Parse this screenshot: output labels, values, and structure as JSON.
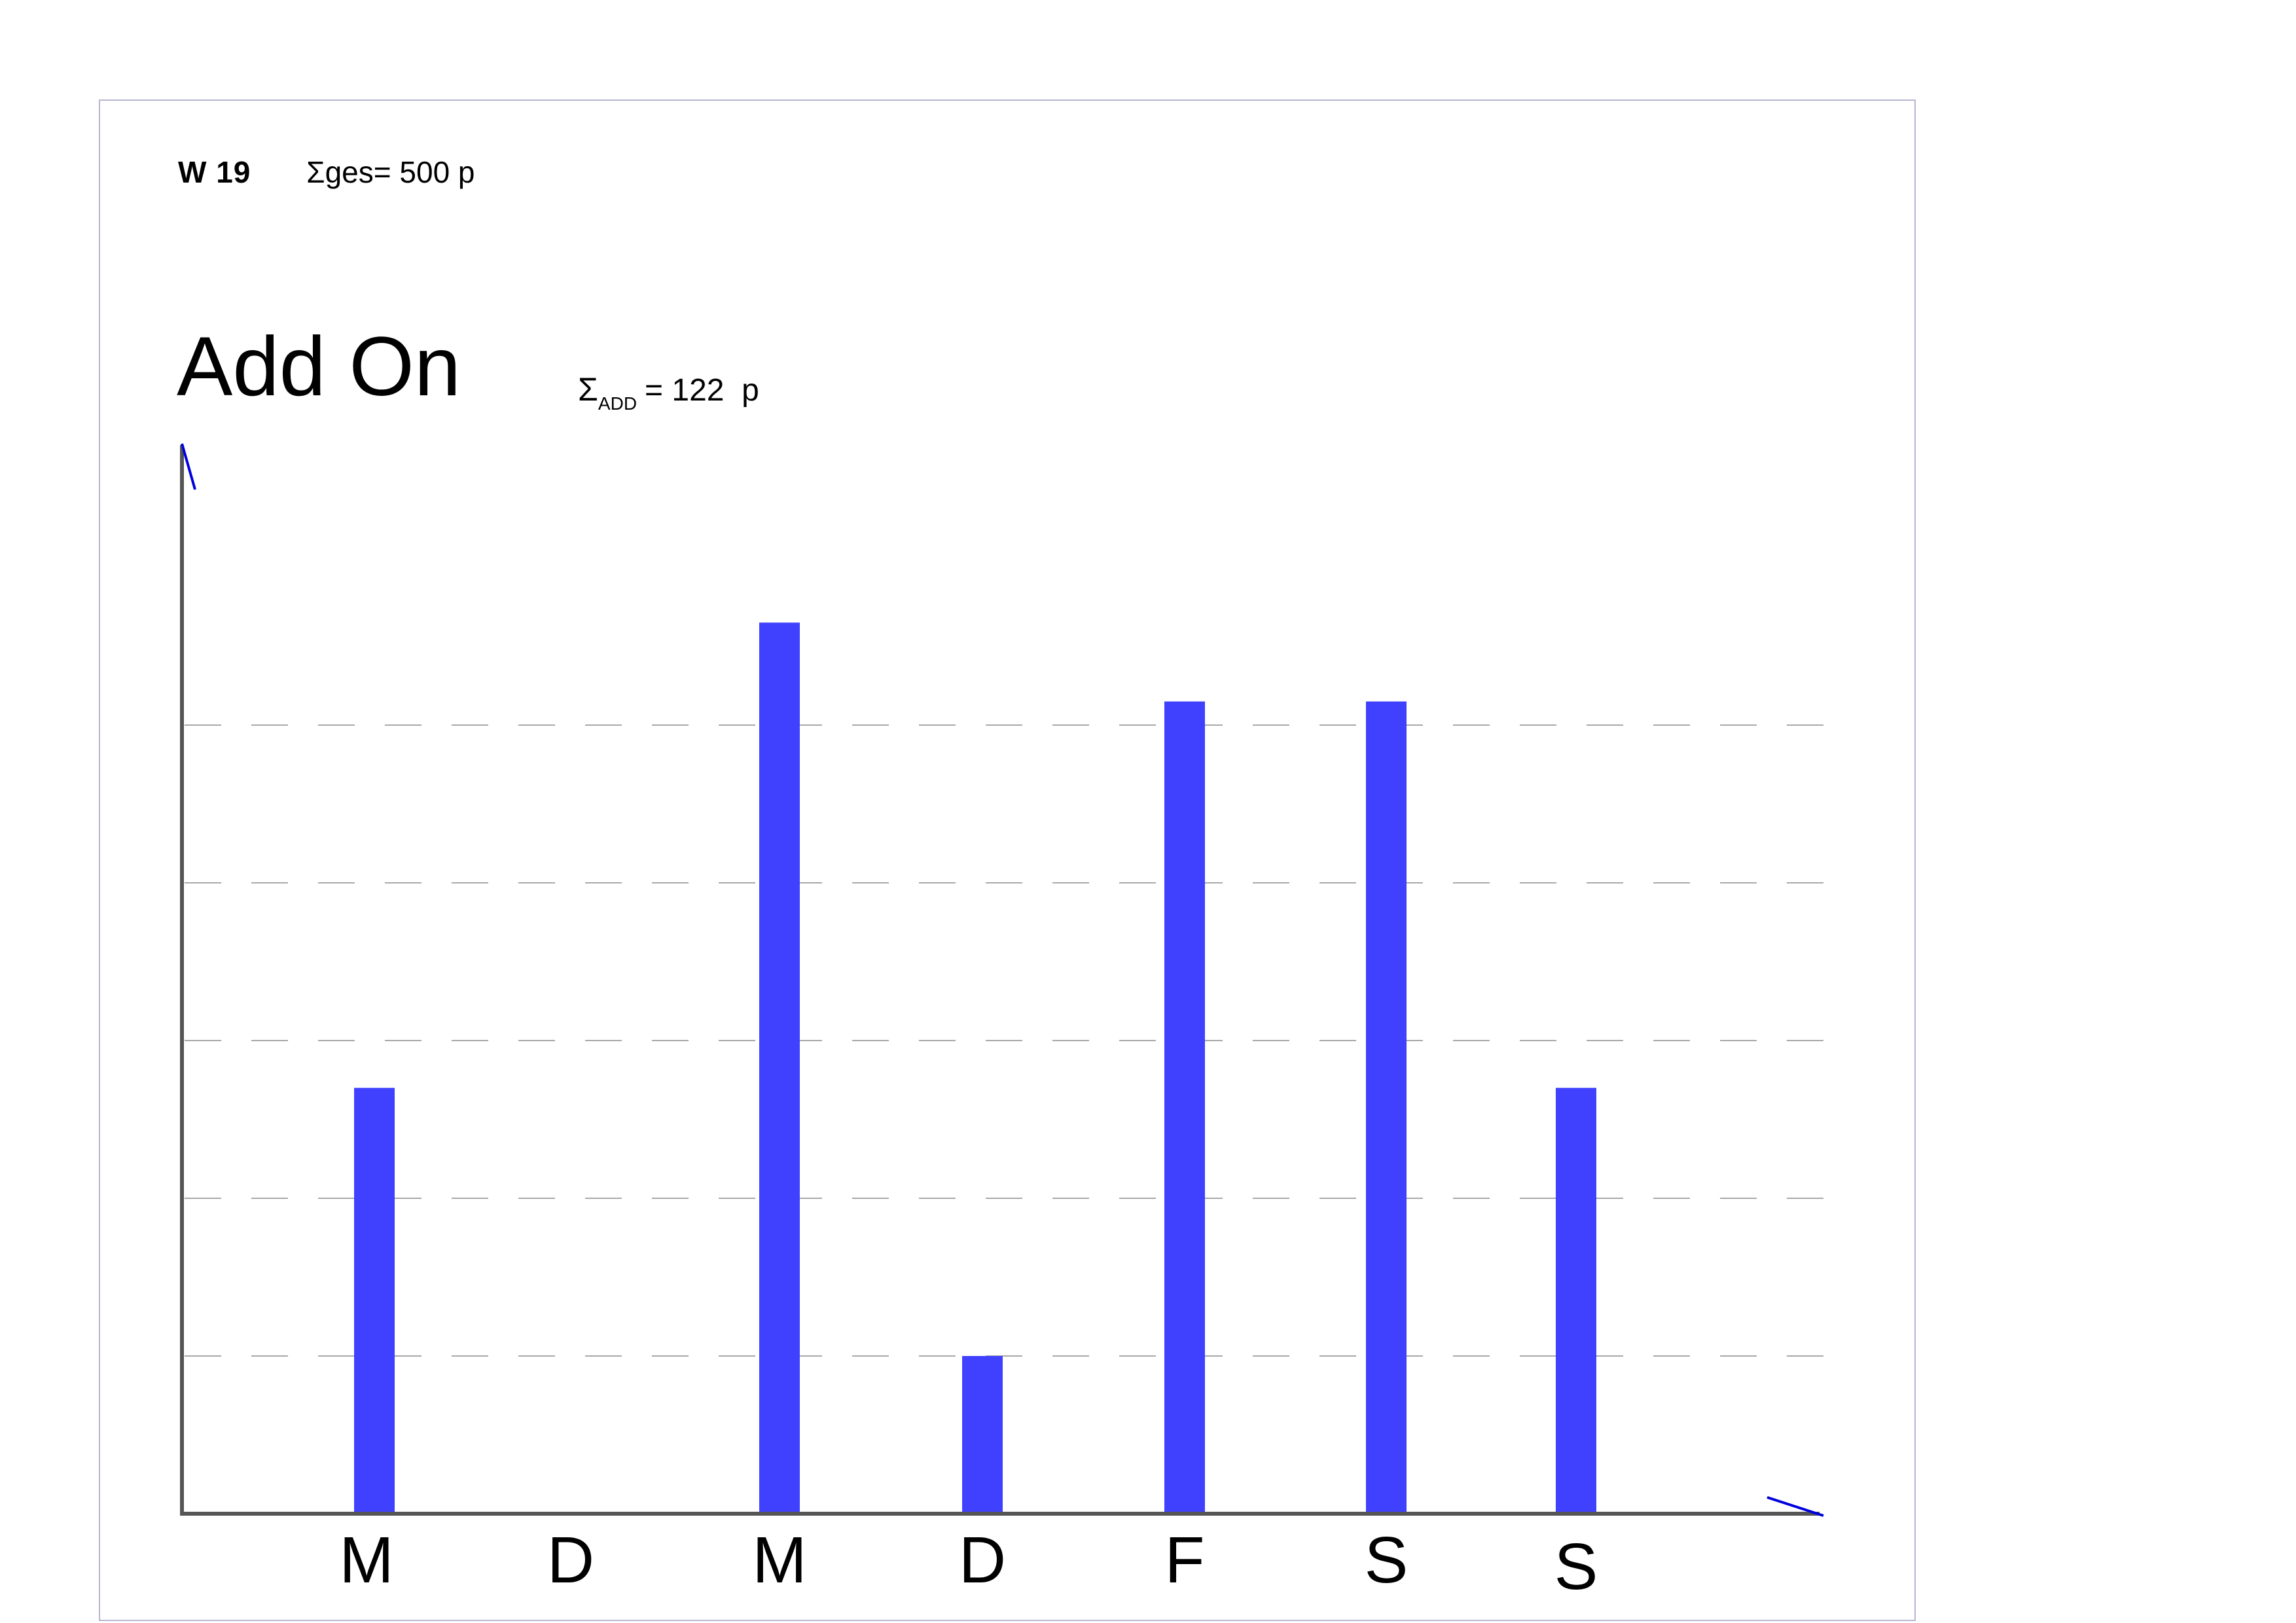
{
  "header": {
    "week": "W 19",
    "total_label": "Σges=",
    "total_value": "500 p"
  },
  "title": "Add On",
  "add_sum": {
    "symbol": "Σ",
    "subscript": "ADD",
    "equals": "= 122",
    "unit": "p"
  },
  "colors": {
    "bar": "#4040ff",
    "axis": "#555555",
    "grid": "#a8a8a8",
    "arrow": "#0000dd",
    "frame": "#b6b6d2"
  },
  "chart_data": {
    "type": "bar",
    "categories": [
      "M",
      "D",
      "M",
      "D",
      "F",
      "S",
      "S"
    ],
    "values": [
      2.7,
      0,
      5.65,
      1.0,
      5.15,
      5.15,
      2.7
    ],
    "ylim": [
      0,
      7
    ],
    "grid_values": [
      1,
      2,
      3,
      4,
      5
    ],
    "grid": true,
    "title": "",
    "xlabel": "",
    "ylabel": ""
  }
}
